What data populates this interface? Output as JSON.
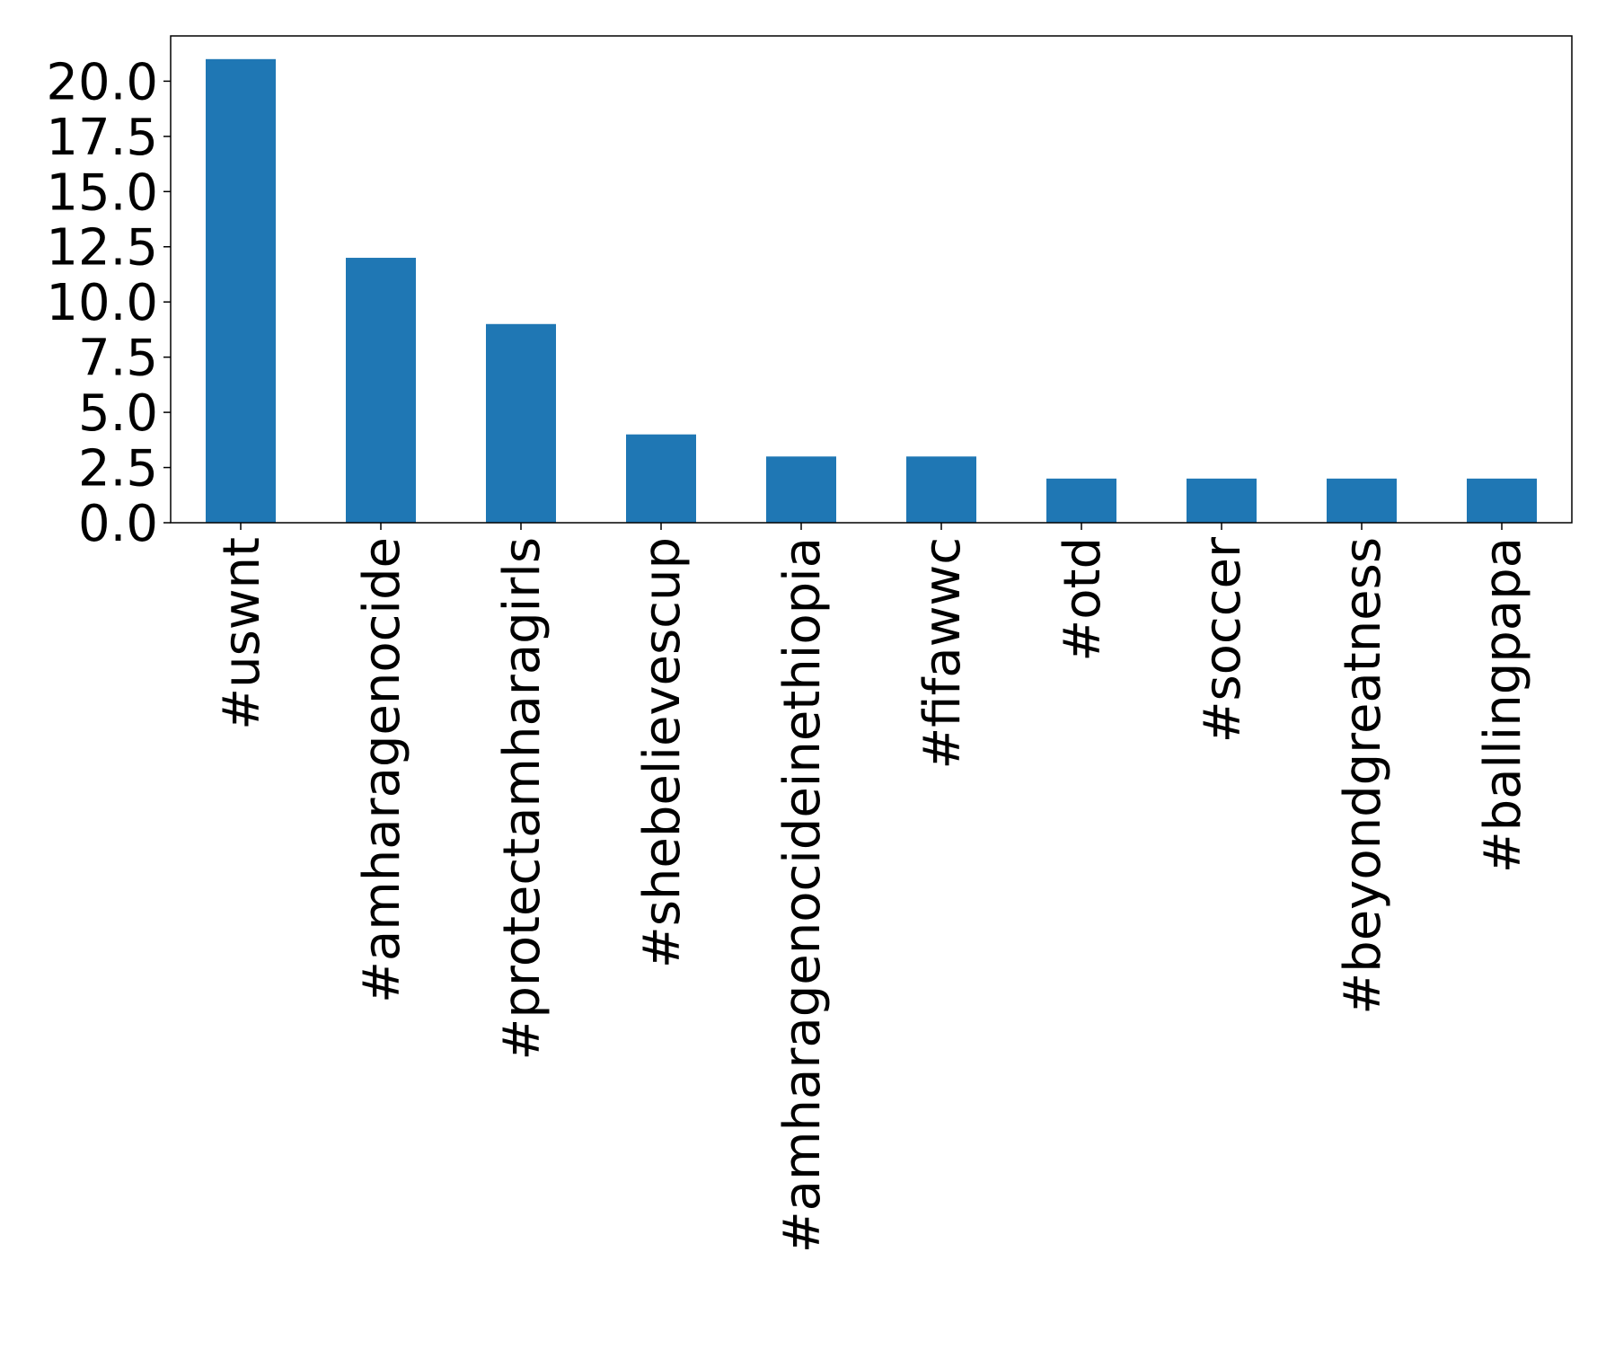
{
  "chart_data": {
    "type": "bar",
    "title": "",
    "xlabel": "",
    "ylabel": "",
    "categories": [
      "#uswnt",
      "#amharagenocide",
      "#protectamharagirls",
      "#shebelievescup",
      "#amharagenocideinethiopia",
      "#fifawwc",
      "#otd",
      "#soccer",
      "#beyondgreatness",
      "#ballingpapa"
    ],
    "values": [
      21,
      12,
      9,
      4,
      3,
      3,
      2,
      2,
      2,
      2
    ],
    "ylim": [
      0,
      22.05
    ],
    "yticks": [
      "0.0",
      "2.5",
      "5.0",
      "7.5",
      "10.0",
      "12.5",
      "15.0",
      "17.5",
      "20.0"
    ],
    "ytick_values": [
      0,
      2.5,
      5,
      7.5,
      10,
      12.5,
      15,
      17.5,
      20
    ],
    "bar_color": "#1f77b4",
    "grid": false,
    "legend": "none"
  }
}
